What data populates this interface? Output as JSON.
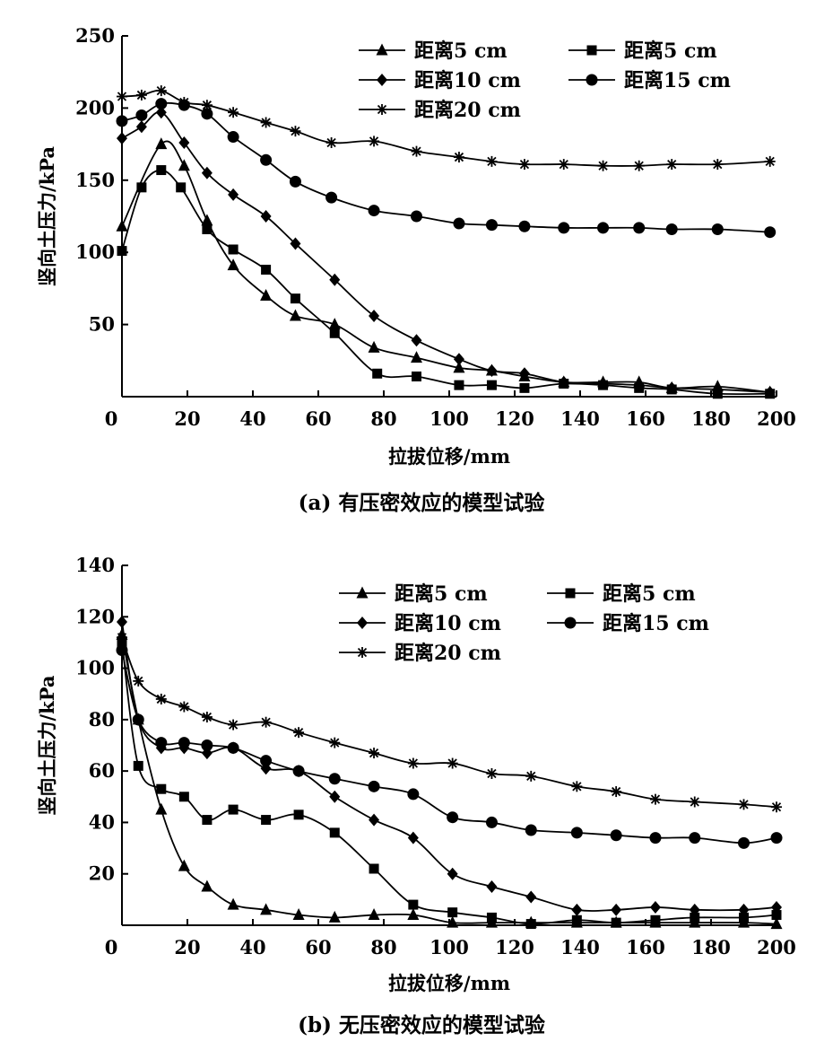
{
  "figure": {
    "caption_a": "(a) 有压密效应的模型试验",
    "caption_b": "(b) 无压密效应的模型试验"
  },
  "chart_data": [
    {
      "type": "line",
      "title": "(a) 有压密效应的模型试验",
      "xlabel": "拉拔位移/mm",
      "ylabel": "竖向土压力/kPa",
      "xlim": [
        0,
        200
      ],
      "ylim": [
        0,
        250
      ],
      "xticks": [
        0,
        20,
        40,
        60,
        80,
        100,
        120,
        140,
        160,
        180,
        200
      ],
      "yticks": [
        50,
        100,
        150,
        200,
        250
      ],
      "grid": false,
      "legend": "top-right",
      "series": [
        {
          "name": "距离5 cm",
          "marker": "triangle",
          "x": [
            0,
            12,
            19,
            26,
            34,
            44,
            53,
            65,
            77,
            90,
            103,
            113,
            123,
            135,
            147,
            158,
            168,
            182,
            198
          ],
          "y": [
            118,
            175,
            160,
            122,
            91,
            70,
            56,
            50,
            34,
            27,
            20,
            18,
            14,
            10,
            10,
            10,
            6,
            7,
            3
          ]
        },
        {
          "name": "距离5 cm",
          "marker": "square",
          "x": [
            0,
            6,
            12,
            18,
            26,
            34,
            44,
            53,
            65,
            78,
            90,
            103,
            113,
            123,
            135,
            147,
            158,
            168,
            182,
            198
          ],
          "y": [
            101,
            145,
            157,
            145,
            116,
            102,
            88,
            68,
            44,
            16,
            14,
            8,
            8,
            6,
            9,
            8,
            6,
            5,
            2,
            2
          ]
        },
        {
          "name": "距离10 cm",
          "marker": "diamond",
          "x": [
            0,
            6,
            12,
            19,
            26,
            34,
            44,
            53,
            65,
            77,
            90,
            103,
            113,
            123,
            135,
            147,
            158,
            168,
            182,
            198
          ],
          "y": [
            179,
            187,
            197,
            176,
            155,
            140,
            125,
            106,
            81,
            56,
            39,
            26,
            18,
            16,
            10,
            9,
            8,
            6,
            5,
            3
          ]
        },
        {
          "name": "距离15 cm",
          "marker": "circle",
          "x": [
            0,
            6,
            12,
            19,
            26,
            34,
            44,
            53,
            64,
            77,
            90,
            103,
            113,
            123,
            135,
            147,
            158,
            168,
            182,
            198
          ],
          "y": [
            191,
            195,
            203,
            202,
            196,
            180,
            164,
            149,
            138,
            129,
            125,
            120,
            119,
            118,
            117,
            117,
            117,
            116,
            116,
            114
          ]
        },
        {
          "name": "距离20 cm",
          "marker": "asterisk",
          "x": [
            0,
            6,
            12,
            19,
            26,
            34,
            44,
            53,
            64,
            77,
            90,
            103,
            113,
            123,
            135,
            147,
            158,
            168,
            182,
            198
          ],
          "y": [
            208,
            209,
            212,
            204,
            202,
            197,
            190,
            184,
            176,
            177,
            170,
            166,
            163,
            161,
            161,
            160,
            160,
            161,
            161,
            163
          ]
        }
      ]
    },
    {
      "type": "line",
      "title": "(b) 无压密效应的模型试验",
      "xlabel": "拉拔位移/mm",
      "ylabel": "竖向土压力/kPa",
      "xlim": [
        0,
        200
      ],
      "ylim": [
        0,
        140
      ],
      "xticks": [
        0,
        20,
        40,
        60,
        80,
        100,
        120,
        140,
        160,
        180,
        200
      ],
      "yticks": [
        20,
        40,
        60,
        80,
        100,
        120,
        140
      ],
      "grid": false,
      "legend": "top-right",
      "series": [
        {
          "name": "距离5 cm",
          "marker": "triangle",
          "x": [
            0,
            5,
            12,
            19,
            26,
            34,
            44,
            54,
            65,
            77,
            89,
            101,
            113,
            125,
            139,
            151,
            163,
            175,
            190,
            200
          ],
          "y": [
            113,
            80,
            45,
            23,
            15,
            8,
            6,
            4,
            3,
            4,
            4,
            1,
            1,
            1,
            1,
            1,
            1,
            1,
            1,
            0.5
          ]
        },
        {
          "name": "距离5 cm",
          "marker": "square",
          "x": [
            0,
            5,
            12,
            19,
            26,
            34,
            44,
            54,
            65,
            77,
            89,
            101,
            113,
            125,
            139,
            151,
            163,
            175,
            190,
            200
          ],
          "y": [
            110,
            62,
            53,
            50,
            41,
            45,
            41,
            43,
            36,
            22,
            8,
            5,
            3,
            0.5,
            2,
            1,
            2,
            3,
            3,
            4
          ]
        },
        {
          "name": "距离10 cm",
          "marker": "diamond",
          "x": [
            0,
            5,
            12,
            19,
            26,
            34,
            44,
            54,
            65,
            77,
            89,
            101,
            113,
            125,
            139,
            151,
            163,
            175,
            190,
            200
          ],
          "y": [
            118,
            80,
            69,
            69,
            67,
            69,
            61,
            60,
            50,
            41,
            34,
            20,
            15,
            11,
            6,
            6,
            7,
            6,
            6,
            7
          ]
        },
        {
          "name": "距离15 cm",
          "marker": "circle",
          "x": [
            0,
            5,
            12,
            19,
            26,
            34,
            44,
            54,
            65,
            77,
            89,
            101,
            113,
            125,
            139,
            151,
            163,
            175,
            190,
            200
          ],
          "y": [
            107,
            80,
            71,
            71,
            70,
            69,
            64,
            60,
            57,
            54,
            51,
            42,
            40,
            37,
            36,
            35,
            34,
            34,
            32,
            34
          ]
        },
        {
          "name": "距离20 cm",
          "marker": "asterisk",
          "x": [
            0,
            5,
            12,
            19,
            26,
            34,
            44,
            54,
            65,
            77,
            89,
            101,
            113,
            125,
            139,
            151,
            163,
            175,
            190,
            200
          ],
          "y": [
            112,
            95,
            88,
            85,
            81,
            78,
            79,
            75,
            71,
            67,
            63,
            63,
            59,
            58,
            54,
            52,
            49,
            48,
            47,
            46
          ]
        }
      ]
    }
  ]
}
